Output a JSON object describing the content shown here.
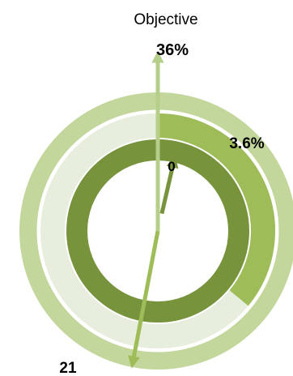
{
  "chart_data": {
    "type": "radial-gauge",
    "objective": {
      "label": "Objective",
      "value_label": "36%",
      "value": 36
    },
    "rings": [
      {
        "name": "",
        "value": 36,
        "value_label": "",
        "color": "#9ebd58",
        "track_color": "#e8eedd"
      },
      {
        "name": "",
        "value": 3.6,
        "value_label": "3.6%",
        "color": "#77933c",
        "track_color": "#77933c"
      }
    ],
    "labels": {
      "center_zero": "0",
      "current": "3.6%",
      "bottom_value": "21"
    },
    "pointers": [
      {
        "name": "objective",
        "value": 0,
        "color": "#b5cf8a"
      },
      {
        "name": "current",
        "value": 3.6,
        "color": "#77933c"
      },
      {
        "name": "reading",
        "value": 53,
        "color": "#9ebd58"
      }
    ],
    "scale_max": 100,
    "outer_band_color": "#c3d69b"
  }
}
